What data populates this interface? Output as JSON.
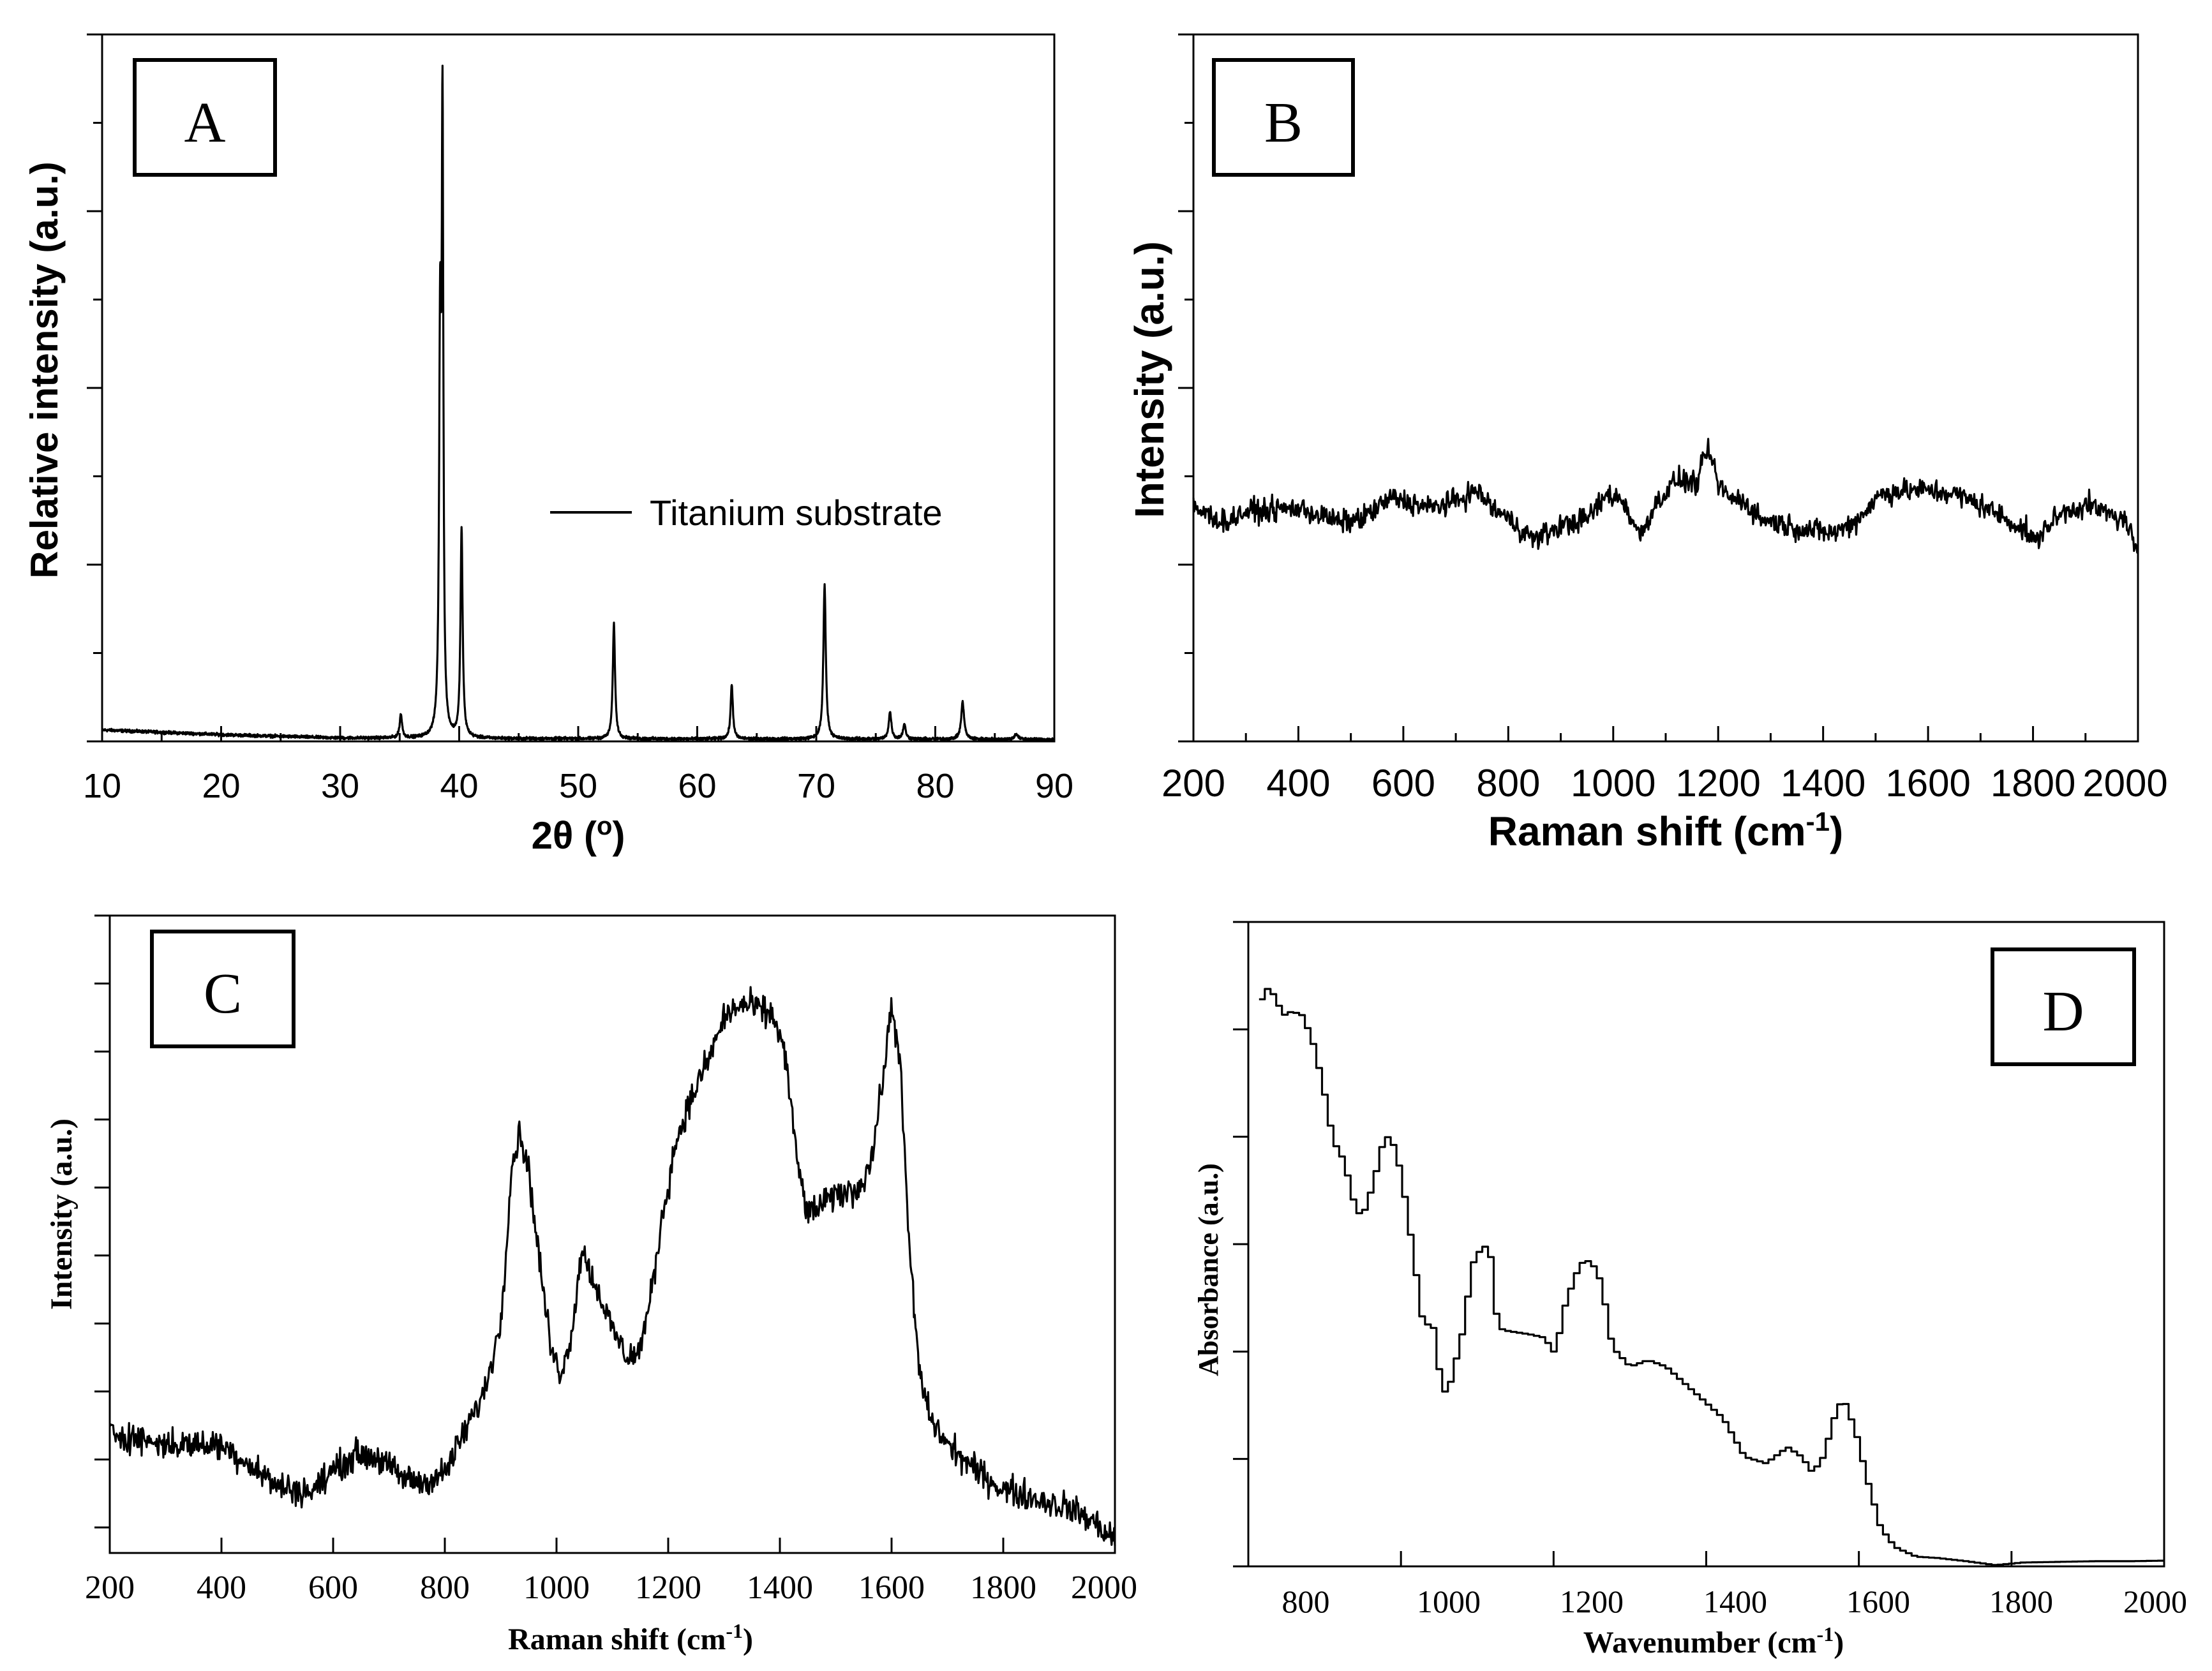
{
  "chart_data": [
    {
      "panel": "A",
      "type": "line",
      "panel_label": "A",
      "xlabel": "2θ (",
      "xlabel_sup": "o",
      "xlabel_tail": ")",
      "ylabel": "Relative intensity (a.u.)",
      "xlim": [
        10,
        90
      ],
      "ylim": [
        0,
        105
      ],
      "xticks": [
        "10",
        "20",
        "30",
        "40",
        "50",
        "60",
        "70",
        "80",
        "90"
      ],
      "legend": "Titanium substrate",
      "baseline": [
        [
          10,
          1.7
        ],
        [
          20,
          1.0
        ],
        [
          30,
          0.5
        ],
        [
          45,
          0.4
        ],
        [
          90,
          0.3
        ]
      ],
      "peaks": [
        {
          "pos": 35.1,
          "height": 3.5,
          "width": 0.18
        },
        {
          "pos": 38.4,
          "height": 58,
          "width": 0.15
        },
        {
          "pos": 38.6,
          "height": 88,
          "width": 0.12
        },
        {
          "pos": 40.2,
          "height": 31,
          "width": 0.16
        },
        {
          "pos": 53.0,
          "height": 17,
          "width": 0.17
        },
        {
          "pos": 62.9,
          "height": 8,
          "width": 0.17
        },
        {
          "pos": 70.7,
          "height": 23,
          "width": 0.18
        },
        {
          "pos": 76.2,
          "height": 4,
          "width": 0.2
        },
        {
          "pos": 77.4,
          "height": 2.2,
          "width": 0.2
        },
        {
          "pos": 82.3,
          "height": 5.5,
          "width": 0.22
        },
        {
          "pos": 86.8,
          "height": 0.8,
          "width": 0.25
        }
      ]
    },
    {
      "panel": "B",
      "type": "line",
      "panel_label": "B",
      "xlabel": "Raman shift (cm",
      "xlabel_sup": "-1",
      "xlabel_tail": ")",
      "ylabel": "Intensity (a.u.)",
      "xlim": [
        200,
        2000
      ],
      "ylim": [
        0,
        100
      ],
      "xticks": [
        "200",
        "400",
        "600",
        "800",
        "1000",
        "1200",
        "1400",
        "1600",
        "1800",
        "2000"
      ],
      "noise": 1.4,
      "points": [
        [
          200,
          33
        ],
        [
          260,
          31
        ],
        [
          300,
          32.5
        ],
        [
          400,
          33
        ],
        [
          480,
          31
        ],
        [
          520,
          31.5
        ],
        [
          580,
          34.5
        ],
        [
          650,
          33
        ],
        [
          700,
          34
        ],
        [
          740,
          35.5
        ],
        [
          770,
          33
        ],
        [
          800,
          31.5
        ],
        [
          850,
          28.5
        ],
        [
          900,
          30.5
        ],
        [
          950,
          31.5
        ],
        [
          990,
          35
        ],
        [
          1020,
          34
        ],
        [
          1050,
          29
        ],
        [
          1080,
          33.5
        ],
        [
          1120,
          37
        ],
        [
          1160,
          36.5
        ],
        [
          1180,
          41.5
        ],
        [
          1200,
          36.5
        ],
        [
          1220,
          34.5
        ],
        [
          1250,
          34
        ],
        [
          1280,
          31.5
        ],
        [
          1310,
          31
        ],
        [
          1360,
          30
        ],
        [
          1420,
          29.5
        ],
        [
          1460,
          31
        ],
        [
          1510,
          35
        ],
        [
          1550,
          35.5
        ],
        [
          1600,
          35.5
        ],
        [
          1650,
          35
        ],
        [
          1700,
          33.5
        ],
        [
          1760,
          31
        ],
        [
          1790,
          29.5
        ],
        [
          1805,
          28
        ],
        [
          1820,
          30
        ],
        [
          1860,
          32.5
        ],
        [
          1900,
          33.5
        ],
        [
          1950,
          32
        ],
        [
          1980,
          31
        ],
        [
          2000,
          26
        ]
      ]
    },
    {
      "panel": "C",
      "type": "line",
      "panel_label": "C",
      "xlabel": "Raman shift (cm",
      "xlabel_sup": "-1",
      "xlabel_tail": ")",
      "ylabel": "Intensity (a.u.)",
      "xlim": [
        200,
        2000
      ],
      "ylim": [
        0,
        100
      ],
      "xticks": [
        "200",
        "400",
        "600",
        "800",
        "1000",
        "1200",
        "1400",
        "1600",
        "1800",
        "2000"
      ],
      "noise": 2.0,
      "points": [
        [
          200,
          19
        ],
        [
          250,
          18
        ],
        [
          300,
          17
        ],
        [
          400,
          17
        ],
        [
          450,
          14
        ],
        [
          500,
          10.5
        ],
        [
          560,
          9.5
        ],
        [
          600,
          13
        ],
        [
          640,
          15.5
        ],
        [
          680,
          15
        ],
        [
          720,
          12
        ],
        [
          760,
          11
        ],
        [
          800,
          12.5
        ],
        [
          830,
          18
        ],
        [
          870,
          25
        ],
        [
          900,
          36
        ],
        [
          920,
          61
        ],
        [
          935,
          66
        ],
        [
          950,
          60
        ],
        [
          975,
          42
        ],
        [
          990,
          32
        ],
        [
          1005,
          28.5
        ],
        [
          1020,
          31
        ],
        [
          1035,
          40
        ],
        [
          1045,
          48
        ],
        [
          1060,
          44
        ],
        [
          1080,
          40
        ],
        [
          1100,
          35
        ],
        [
          1125,
          31
        ],
        [
          1145,
          31
        ],
        [
          1165,
          38
        ],
        [
          1190,
          53
        ],
        [
          1215,
          65
        ],
        [
          1245,
          72
        ],
        [
          1275,
          78
        ],
        [
          1300,
          84
        ],
        [
          1330,
          86
        ],
        [
          1360,
          85.5
        ],
        [
          1390,
          84
        ],
        [
          1410,
          78
        ],
        [
          1430,
          62
        ],
        [
          1450,
          53
        ],
        [
          1480,
          55
        ],
        [
          1510,
          56.5
        ],
        [
          1540,
          57
        ],
        [
          1565,
          62
        ],
        [
          1590,
          78
        ],
        [
          1600,
          86
        ],
        [
          1615,
          78
        ],
        [
          1630,
          50
        ],
        [
          1650,
          28
        ],
        [
          1670,
          21
        ],
        [
          1700,
          17
        ],
        [
          1750,
          13
        ],
        [
          1800,
          10
        ],
        [
          1860,
          8.5
        ],
        [
          1920,
          7
        ],
        [
          1960,
          5
        ],
        [
          2000,
          2
        ]
      ]
    },
    {
      "panel": "D",
      "type": "line",
      "panel_label": "D",
      "xlabel": "Wavenumber (cm",
      "xlabel_sup": "-1",
      "xlabel_tail": ")",
      "ylabel": "Absorbance (a.u.)",
      "xlim": [
        720,
        2000
      ],
      "ylim": [
        0,
        100
      ],
      "xticks": [
        "800",
        "1000",
        "1200",
        "1400",
        "1600",
        "1800",
        "2000"
      ],
      "step": 8,
      "points": [
        [
          735,
          88
        ],
        [
          745,
          90
        ],
        [
          755,
          88
        ],
        [
          765,
          85.5
        ],
        [
          775,
          86
        ],
        [
          790,
          85.8
        ],
        [
          805,
          82
        ],
        [
          820,
          75
        ],
        [
          835,
          66
        ],
        [
          850,
          63
        ],
        [
          865,
          56
        ],
        [
          875,
          54
        ],
        [
          890,
          59
        ],
        [
          905,
          66
        ],
        [
          915,
          67
        ],
        [
          930,
          61
        ],
        [
          945,
          50
        ],
        [
          960,
          38
        ],
        [
          975,
          37
        ],
        [
          985,
          29
        ],
        [
          993,
          26.5
        ],
        [
          1000,
          29
        ],
        [
          1015,
          36
        ],
        [
          1030,
          47
        ],
        [
          1045,
          50
        ],
        [
          1055,
          48
        ],
        [
          1065,
          37
        ],
        [
          1080,
          36.5
        ],
        [
          1110,
          36
        ],
        [
          1130,
          35.5
        ],
        [
          1145,
          33
        ],
        [
          1160,
          41
        ],
        [
          1180,
          47
        ],
        [
          1195,
          47.5
        ],
        [
          1210,
          44
        ],
        [
          1225,
          34
        ],
        [
          1250,
          31
        ],
        [
          1275,
          32
        ],
        [
          1300,
          31
        ],
        [
          1340,
          27
        ],
        [
          1380,
          23
        ],
        [
          1410,
          17
        ],
        [
          1440,
          16
        ],
        [
          1470,
          18.5
        ],
        [
          1490,
          17
        ],
        [
          1505,
          14.5
        ],
        [
          1520,
          17
        ],
        [
          1540,
          25
        ],
        [
          1550,
          25.5
        ],
        [
          1565,
          21
        ],
        [
          1580,
          14
        ],
        [
          1600,
          6
        ],
        [
          1620,
          3
        ],
        [
          1650,
          1.5
        ],
        [
          1680,
          1.3
        ],
        [
          1720,
          0.8
        ],
        [
          1760,
          0.2
        ],
        [
          1800,
          0.6
        ],
        [
          1850,
          0.7
        ],
        [
          1900,
          0.8
        ],
        [
          1950,
          0.8
        ],
        [
          2000,
          0.9
        ]
      ]
    }
  ]
}
